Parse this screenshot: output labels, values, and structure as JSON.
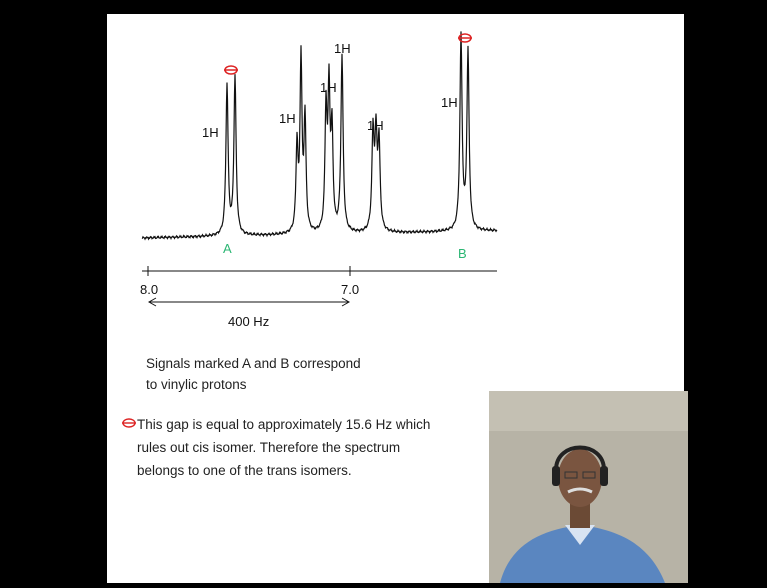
{
  "spectrum": {
    "peak_labels": [
      "1H",
      "1H",
      "1H",
      "1H",
      "1H",
      "1H"
    ],
    "signal_labels": [
      "A",
      "B"
    ],
    "axis_labels": [
      "8.0",
      "7.0"
    ],
    "span_label": "400 Hz"
  },
  "notes": {
    "signals": [
      "Signals marked A and B correspond",
      "to vinylic protons"
    ],
    "gap": [
      "This gap is equal to approximately 15.6 Hz which",
      "rules out cis isomer. Therefore the spectrum",
      "belongs to one of the trans isomers."
    ]
  }
}
